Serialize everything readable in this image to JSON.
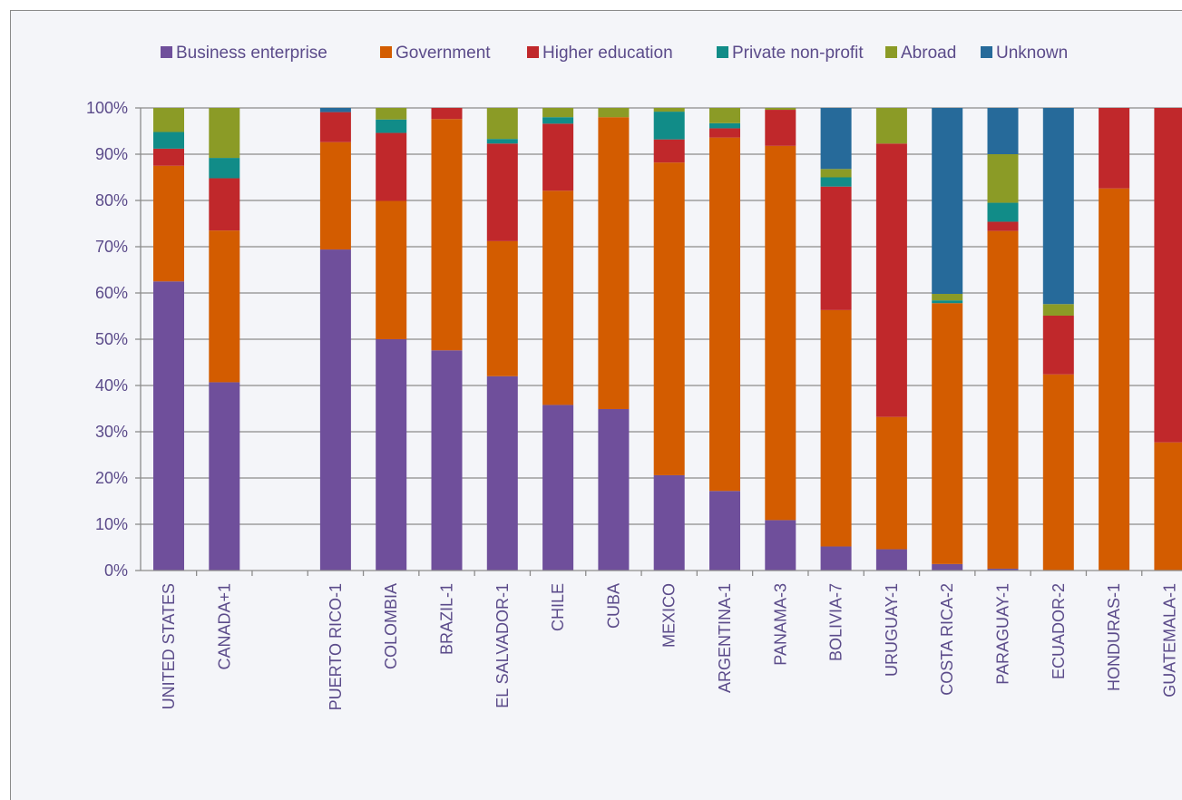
{
  "chart_data": {
    "type": "bar",
    "stacked": true,
    "title": "",
    "xlabel": "",
    "ylabel": "",
    "ylim": [
      0,
      100
    ],
    "y_ticks": [
      "0%",
      "10%",
      "20%",
      "30%",
      "40%",
      "50%",
      "60%",
      "70%",
      "80%",
      "90%",
      "100%"
    ],
    "grid": true,
    "legend_position": "top",
    "categories": [
      "UNITED STATES",
      "CANADA+1",
      "",
      "PUERTO RICO-1",
      "COLOMBIA",
      "BRAZIL-1",
      "EL SALVADOR-1",
      "CHILE",
      "CUBA",
      "MEXICO",
      "ARGENTINA-1",
      "PANAMA-3",
      "BOLIVIA-7",
      "URUGUAY-1",
      "COSTA RICA-2",
      "PARAGUAY-1",
      "ECUADOR-2",
      "HONDURAS-1",
      "GUATEMALA-1"
    ],
    "series": [
      {
        "name": "Business enterprise",
        "color": "#6f4f9b",
        "values": [
          62.5,
          40.7,
          null,
          69.4,
          50.0,
          47.6,
          42.0,
          35.8,
          34.9,
          20.6,
          17.2,
          10.9,
          5.2,
          4.6,
          1.4,
          0.4,
          0,
          0,
          0
        ]
      },
      {
        "name": "Government",
        "color": "#d35c00",
        "values": [
          25.0,
          32.8,
          null,
          23.2,
          29.9,
          50.0,
          29.2,
          46.3,
          63.1,
          67.6,
          76.4,
          80.9,
          51.1,
          28.6,
          56.4,
          73.0,
          42.4,
          82.6,
          27.7
        ]
      },
      {
        "name": "Higher education",
        "color": "#c0282b",
        "values": [
          3.7,
          11.3,
          null,
          6.5,
          14.7,
          2.4,
          21.1,
          14.5,
          0,
          5.0,
          2.0,
          7.8,
          26.7,
          59.1,
          0,
          2.0,
          12.7,
          17.4,
          72.3
        ]
      },
      {
        "name": "Private non-profit",
        "color": "#118c88",
        "values": [
          3.6,
          4.4,
          null,
          0,
          2.9,
          0,
          1.0,
          1.4,
          0,
          6.0,
          1.1,
          0,
          2.0,
          0,
          0.6,
          4.1,
          0,
          0,
          0
        ]
      },
      {
        "name": "Abroad",
        "color": "#8b9b26",
        "values": [
          5.2,
          10.8,
          null,
          0,
          2.5,
          0,
          6.7,
          2.0,
          2.0,
          0.8,
          3.3,
          0.4,
          1.8,
          7.7,
          1.4,
          10.5,
          2.5,
          0,
          0
        ]
      },
      {
        "name": "Unknown",
        "color": "#266a9a",
        "values": [
          0,
          0,
          null,
          0.9,
          0,
          0,
          0,
          0,
          0,
          0,
          0,
          0,
          13.2,
          0,
          40.2,
          10.0,
          42.4,
          0,
          0
        ]
      }
    ]
  }
}
